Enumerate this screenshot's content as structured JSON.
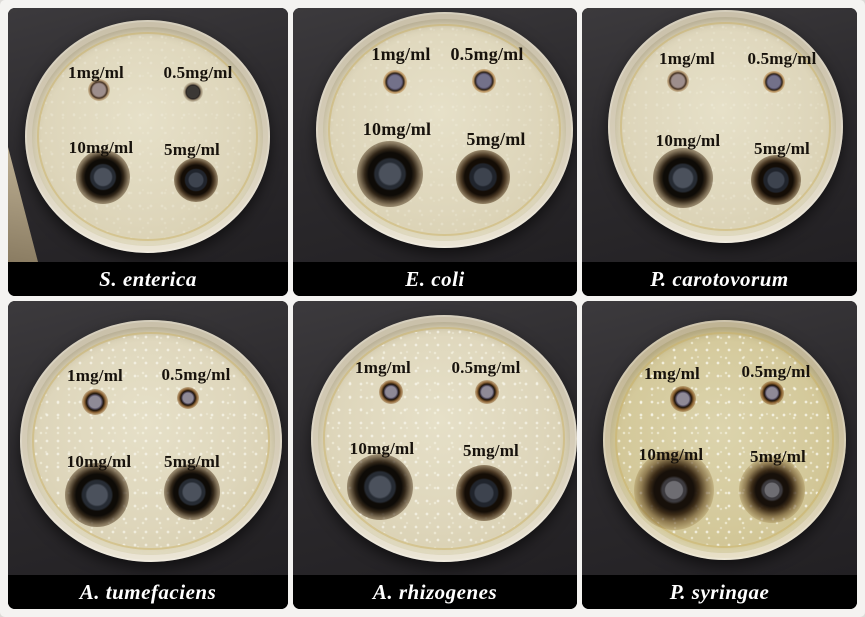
{
  "figure": {
    "description": "Agar well diffusion antibacterial assay, six petri dish photographs",
    "concentrations": [
      "1mg/ml",
      "0.5mg/ml",
      "10mg/ml",
      "5mg/ml"
    ],
    "panels": [
      {
        "species": "S. enterica"
      },
      {
        "species": "E. coli"
      },
      {
        "species": "P. carotovorum"
      },
      {
        "species": "A. tumefaciens"
      },
      {
        "species": "A. rhizogenes"
      },
      {
        "species": "P. syringae"
      }
    ],
    "colors": {
      "frame": "#f4f3f1",
      "photo_background": "#2d2b2e",
      "agar": "#ddd5ba",
      "agar_syringae": "#d2c795",
      "inhibition_halo": "#3a2410",
      "caption_bar_bg": "#000000",
      "caption_text": "#ffffff",
      "concentration_text": "#17120c"
    }
  }
}
